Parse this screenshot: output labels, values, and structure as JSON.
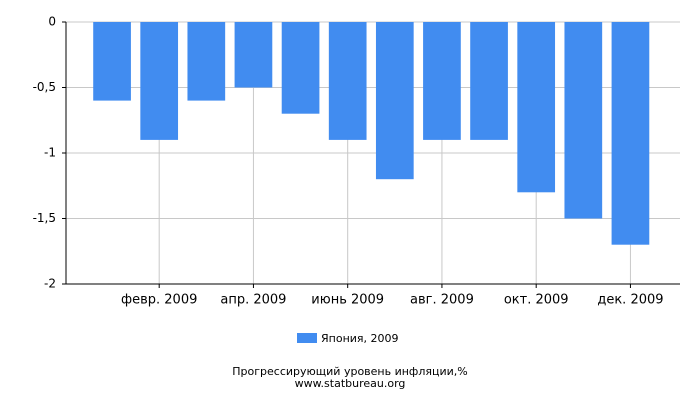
{
  "chart_data": {
    "type": "bar",
    "title": "Прогрессирующий уровень инфляции,%",
    "subtitle": "www.statbureau.org",
    "categories": [
      null,
      "февр. 2009",
      null,
      "апр. 2009",
      null,
      "июнь 2009",
      null,
      "авг. 2009",
      null,
      "окт. 2009",
      null,
      "дек. 2009"
    ],
    "series": [
      {
        "name": "Япония, 2009",
        "color": "#418cf0",
        "values": [
          -0.6,
          -0.9,
          -0.6,
          -0.5,
          -0.7,
          -0.9,
          -1.2,
          -0.9,
          -0.9,
          -1.3,
          -1.5,
          -1.7
        ]
      }
    ],
    "ylim": [
      -2,
      0
    ],
    "yticks": [
      0,
      {
        "value": -0.5,
        "label": "-0,5"
      },
      -1,
      {
        "value": -1.5,
        "label": "-1,5"
      },
      -2
    ],
    "grid": true
  }
}
